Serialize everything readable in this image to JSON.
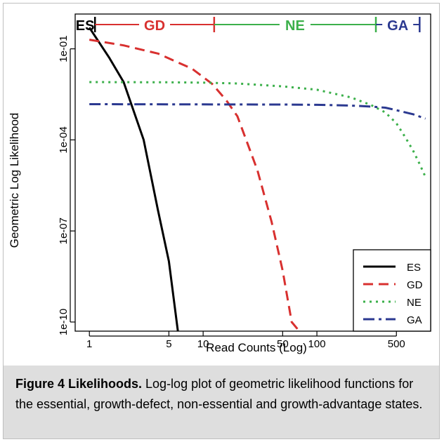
{
  "chart_data": {
    "type": "line",
    "title": "",
    "xlabel": "Read Counts (Log)",
    "ylabel": "Geometric Log Likelihood",
    "xscale": "log",
    "yscale": "log",
    "xlim": [
      0.75,
      1000
    ],
    "ylim": [
      5e-11,
      1.4
    ],
    "grid": false,
    "legend_position": "bottom-right",
    "x_ticks": [
      1,
      5,
      10,
      50,
      100,
      500
    ],
    "x_tick_labels": [
      "1",
      "5",
      "10",
      "50",
      "100",
      "500"
    ],
    "y_ticks": [
      1e-10,
      1e-07,
      0.0001,
      0.1
    ],
    "y_tick_labels": [
      "1e-10",
      "1e-07",
      "1e-04",
      "1e-01"
    ],
    "series": [
      {
        "name": "ES",
        "color": "#000000",
        "dash": "solid",
        "x": [
          1,
          1.5,
          2,
          3,
          4,
          5,
          6
        ],
        "y": [
          0.5,
          0.05,
          0.008,
          0.0001,
          5e-07,
          1e-08,
          5e-11
        ]
      },
      {
        "name": "GD",
        "color": "#d8302f",
        "dash": "dashed",
        "x": [
          1,
          2,
          4,
          8,
          12,
          16,
          20,
          30,
          40,
          50,
          60,
          70
        ],
        "y": [
          0.2,
          0.13,
          0.07,
          0.022,
          0.007,
          0.002,
          0.0006,
          1e-05,
          2e-07,
          5e-09,
          1e-10,
          5e-11
        ]
      },
      {
        "name": "NE",
        "color": "#3cb04b",
        "dash": "dotted",
        "x": [
          1,
          5,
          10,
          20,
          50,
          100,
          200,
          300,
          400,
          500,
          600,
          700,
          800,
          900
        ],
        "y": [
          0.008,
          0.0079,
          0.0077,
          0.0072,
          0.0058,
          0.0045,
          0.0025,
          0.0014,
          0.0008,
          0.00035,
          0.00012,
          4.5e-05,
          1.6e-05,
          6e-06
        ]
      },
      {
        "name": "GA",
        "color": "#2b3990",
        "dash": "dashdot",
        "x": [
          1,
          10,
          50,
          100,
          200,
          300,
          400,
          500,
          700,
          900
        ],
        "y": [
          0.0015,
          0.00148,
          0.00146,
          0.00143,
          0.00135,
          0.00125,
          0.00115,
          0.00095,
          0.0007,
          0.0005
        ]
      }
    ],
    "state_bar": [
      {
        "label": "ES",
        "color": "#000000",
        "from": 0.75,
        "to": 1.12
      },
      {
        "label": "GD",
        "color": "#d8302f",
        "from": 1.12,
        "to": 12.5
      },
      {
        "label": "NE",
        "color": "#3cb04b",
        "from": 12.5,
        "to": 330
      },
      {
        "label": "GA",
        "color": "#2b3990",
        "from": 330,
        "to": 800
      }
    ]
  },
  "caption": {
    "title": "Figure 4 Likelihoods.",
    "text": " Log-log plot of geometric likelihood functions for the essential, growth-defect, non-essential and growth-advantage states."
  }
}
